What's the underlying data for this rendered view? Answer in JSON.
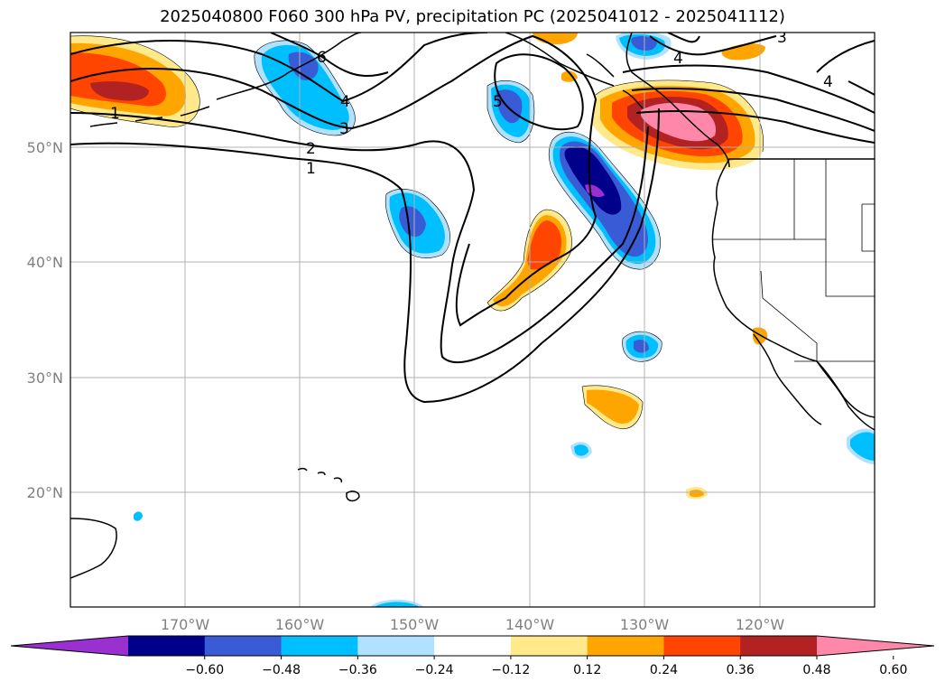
{
  "title": "2025040800 F060 300 hPa PV, precipitation PC (2025041012 - 2025041112)",
  "map": {
    "lon_range": [
      -180,
      -110
    ],
    "lat_range": [
      10,
      60
    ],
    "lon_ticks": [
      {
        "value": -170,
        "label": "170°W"
      },
      {
        "value": -160,
        "label": "160°W"
      },
      {
        "value": -150,
        "label": "150°W"
      },
      {
        "value": -140,
        "label": "140°W"
      },
      {
        "value": -130,
        "label": "130°W"
      },
      {
        "value": -120,
        "label": "120°W"
      }
    ],
    "lat_ticks": [
      {
        "value": 20,
        "label": "20°N"
      },
      {
        "value": 30,
        "label": "30°N"
      },
      {
        "value": 40,
        "label": "40°N"
      },
      {
        "value": 50,
        "label": "50°N"
      }
    ],
    "pv_contour_labels": [
      "1",
      "1",
      "2",
      "3",
      "3",
      "4",
      "4",
      "4",
      "5",
      "6"
    ]
  },
  "colorbar": {
    "colors": [
      "#9b30d0",
      "#00008b",
      "#3a5bd6",
      "#00bfff",
      "#b0e2ff",
      "#ffffff",
      "#ffe98a",
      "#ffa500",
      "#ff4500",
      "#b22222",
      "#ff88aa"
    ],
    "ticks": [
      "−0.60",
      "−0.48",
      "−0.36",
      "−0.24",
      "−0.12",
      "0.12",
      "0.24",
      "0.36",
      "0.48",
      "0.60"
    ],
    "extend": "both"
  }
}
